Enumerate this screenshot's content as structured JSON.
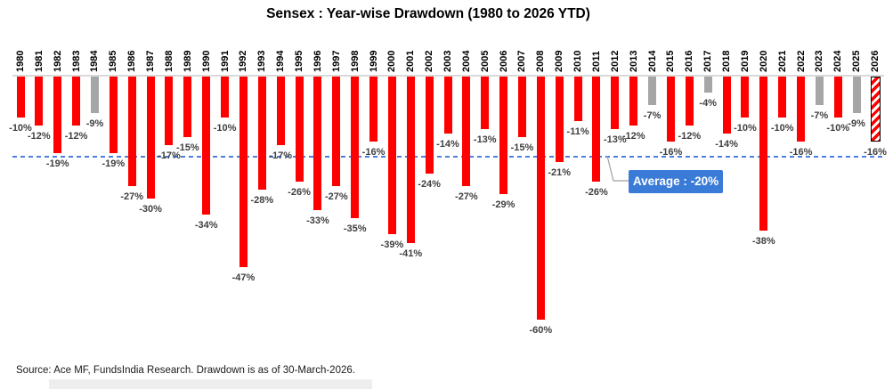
{
  "title": "Sensex : Year-wise Drawdown (1980 to 2026 YTD)",
  "source_note": "Source: Ace MF, FundsIndia Research. Drawdown is as of 30-March-2026.",
  "average_callout": {
    "label": "Average : -20%",
    "value": -20
  },
  "colors": {
    "bar_red": "#FF0000",
    "bar_gray": "#A6A6A6",
    "bar_hatched_stripe": "#FF0000",
    "bar_hatched_border": "#000000",
    "value_label": "#3F3F3F",
    "average_line": "#4D7FDB",
    "average_box_bg": "#3B7BD8",
    "average_box_text": "#FFFFFF",
    "baseline": "#D9D9D9"
  },
  "chart_data": {
    "type": "bar",
    "title": "Sensex : Year-wise Drawdown (1980 to 2026 YTD)",
    "xlabel": "",
    "ylabel": "",
    "ylim": [
      -65,
      0
    ],
    "grid": false,
    "legend": "none",
    "average_reference_line": -20,
    "categories": [
      "1980",
      "1981",
      "1982",
      "1983",
      "1984",
      "1985",
      "1986",
      "1987",
      "1988",
      "1989",
      "1990",
      "1991",
      "1992",
      "1993",
      "1994",
      "1995",
      "1996",
      "1997",
      "1998",
      "1999",
      "2000",
      "2001",
      "2002",
      "2003",
      "2004",
      "2005",
      "2006",
      "2007",
      "2008",
      "2009",
      "2010",
      "2011",
      "2012",
      "2013",
      "2014",
      "2015",
      "2016",
      "2017",
      "2018",
      "2019",
      "2020",
      "2021",
      "2022",
      "2023",
      "2024",
      "2025",
      "2026"
    ],
    "values": [
      -10,
      -12,
      -19,
      -12,
      -9,
      -19,
      -27,
      -30,
      -17,
      -15,
      -34,
      -10,
      -47,
      -28,
      -17,
      -26,
      -33,
      -27,
      -35,
      -16,
      -39,
      -41,
      -24,
      -14,
      -27,
      -13,
      -29,
      -15,
      -60,
      -21,
      -11,
      -26,
      -13,
      -12,
      -7,
      -16,
      -12,
      -4,
      -14,
      -10,
      -38,
      -10,
      -16,
      -7,
      -10,
      -9,
      -16
    ],
    "bars": [
      {
        "year": "1980",
        "value": -10,
        "label": "-10%",
        "style": "red"
      },
      {
        "year": "1981",
        "value": -12,
        "label": "-12%",
        "style": "red"
      },
      {
        "year": "1982",
        "value": -19,
        "label": "-19%",
        "style": "red"
      },
      {
        "year": "1983",
        "value": -12,
        "label": "-12%",
        "style": "red"
      },
      {
        "year": "1984",
        "value": -9,
        "label": "-9%",
        "style": "gray"
      },
      {
        "year": "1985",
        "value": -19,
        "label": "-19%",
        "style": "red"
      },
      {
        "year": "1986",
        "value": -27,
        "label": "-27%",
        "style": "red"
      },
      {
        "year": "1987",
        "value": -30,
        "label": "-30%",
        "style": "red"
      },
      {
        "year": "1988",
        "value": -17,
        "label": "-17%",
        "style": "red"
      },
      {
        "year": "1989",
        "value": -15,
        "label": "-15%",
        "style": "red"
      },
      {
        "year": "1990",
        "value": -34,
        "label": "-34%",
        "style": "red"
      },
      {
        "year": "1991",
        "value": -10,
        "label": "-10%",
        "style": "red"
      },
      {
        "year": "1992",
        "value": -47,
        "label": "-47%",
        "style": "red"
      },
      {
        "year": "1993",
        "value": -28,
        "label": "-28%",
        "style": "red"
      },
      {
        "year": "1994",
        "value": -17,
        "label": "-17%",
        "style": "red"
      },
      {
        "year": "1995",
        "value": -26,
        "label": "-26%",
        "style": "red"
      },
      {
        "year": "1996",
        "value": -33,
        "label": "-33%",
        "style": "red"
      },
      {
        "year": "1997",
        "value": -27,
        "label": "-27%",
        "style": "red"
      },
      {
        "year": "1998",
        "value": -35,
        "label": "-35%",
        "style": "red"
      },
      {
        "year": "1999",
        "value": -16,
        "label": "-16%",
        "style": "red"
      },
      {
        "year": "2000",
        "value": -39,
        "label": "-39%",
        "style": "red"
      },
      {
        "year": "2001",
        "value": -41,
        "label": "-41%",
        "style": "red"
      },
      {
        "year": "2002",
        "value": -24,
        "label": "-24%",
        "style": "red"
      },
      {
        "year": "2003",
        "value": -14,
        "label": "-14%",
        "style": "red"
      },
      {
        "year": "2004",
        "value": -27,
        "label": "-27%",
        "style": "red"
      },
      {
        "year": "2005",
        "value": -13,
        "label": "-13%",
        "style": "red"
      },
      {
        "year": "2006",
        "value": -29,
        "label": "-29%",
        "style": "red"
      },
      {
        "year": "2007",
        "value": -15,
        "label": "-15%",
        "style": "red"
      },
      {
        "year": "2008",
        "value": -60,
        "label": "-60%",
        "style": "red"
      },
      {
        "year": "2009",
        "value": -21,
        "label": "-21%",
        "style": "red"
      },
      {
        "year": "2010",
        "value": -11,
        "label": "-11%",
        "style": "red"
      },
      {
        "year": "2011",
        "value": -26,
        "label": "-26%",
        "style": "red"
      },
      {
        "year": "2012",
        "value": -13,
        "label": "-13%",
        "style": "red"
      },
      {
        "year": "2013",
        "value": -12,
        "label": "-12%",
        "style": "red"
      },
      {
        "year": "2014",
        "value": -7,
        "label": "-7%",
        "style": "gray"
      },
      {
        "year": "2015",
        "value": -16,
        "label": "-16%",
        "style": "red"
      },
      {
        "year": "2016",
        "value": -12,
        "label": "-12%",
        "style": "red"
      },
      {
        "year": "2017",
        "value": -4,
        "label": "-4%",
        "style": "gray"
      },
      {
        "year": "2018",
        "value": -14,
        "label": "-14%",
        "style": "red"
      },
      {
        "year": "2019",
        "value": -10,
        "label": "-10%",
        "style": "red"
      },
      {
        "year": "2020",
        "value": -38,
        "label": "-38%",
        "style": "red"
      },
      {
        "year": "2021",
        "value": -10,
        "label": "-10%",
        "style": "red"
      },
      {
        "year": "2022",
        "value": -16,
        "label": "-16%",
        "style": "red"
      },
      {
        "year": "2023",
        "value": -7,
        "label": "-7%",
        "style": "gray"
      },
      {
        "year": "2024",
        "value": -10,
        "label": "-10%",
        "style": "red"
      },
      {
        "year": "2025",
        "value": -9,
        "label": "-9%",
        "style": "gray"
      },
      {
        "year": "2026",
        "value": -16,
        "label": "-16%",
        "style": "hatched"
      }
    ]
  }
}
